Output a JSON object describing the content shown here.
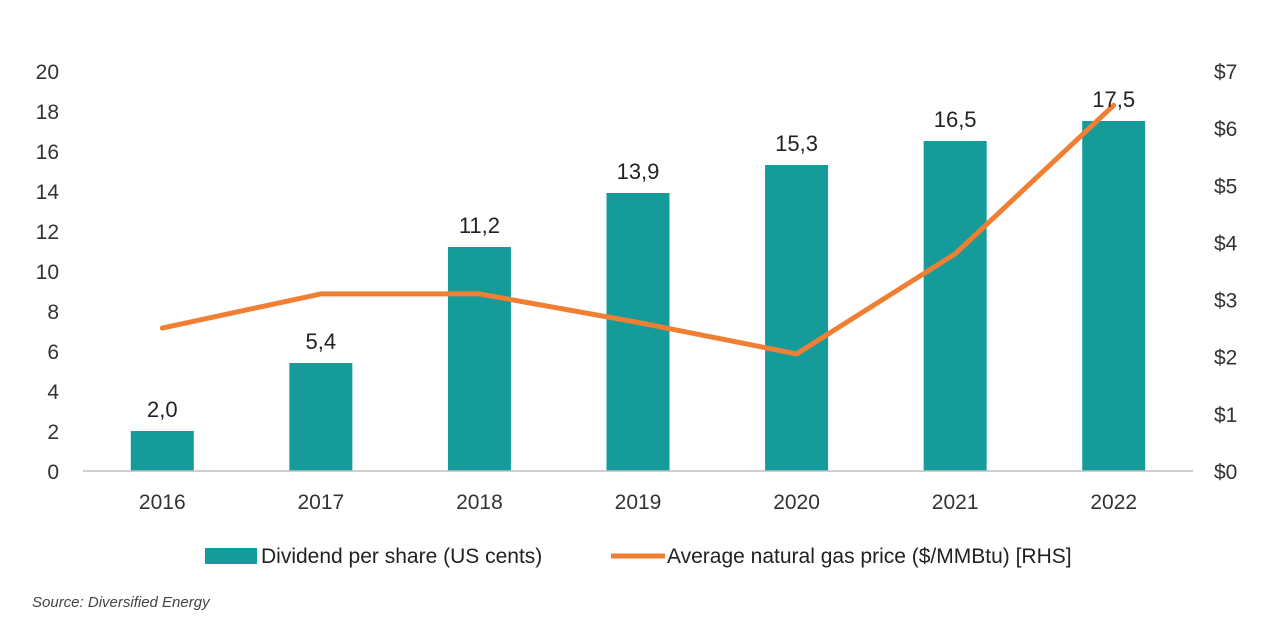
{
  "chart_data": {
    "type": "bar",
    "categories": [
      "2016",
      "2017",
      "2018",
      "2019",
      "2020",
      "2021",
      "2022"
    ],
    "series": [
      {
        "name": "Dividend per share (US cents)",
        "type": "bar",
        "axis": "left",
        "values": [
          2.0,
          5.4,
          11.2,
          13.9,
          15.3,
          16.5,
          17.5
        ],
        "data_labels": [
          "2,0",
          "5,4",
          "11,2",
          "13,9",
          "15,3",
          "16,5",
          "17,5"
        ],
        "color": "#169b9b"
      },
      {
        "name": "Average natural gas price ($/MMBtu) [RHS]",
        "type": "line",
        "axis": "right",
        "values": [
          2.5,
          3.1,
          3.1,
          2.6,
          2.05,
          3.8,
          6.4
        ],
        "color": "#f07f33"
      }
    ],
    "y_left": {
      "lim": [
        0,
        20
      ],
      "ticks": [
        0,
        2,
        4,
        6,
        8,
        10,
        12,
        14,
        16,
        18,
        20
      ],
      "tick_labels": [
        "0",
        "2",
        "4",
        "6",
        "8",
        "10",
        "12",
        "14",
        "16",
        "18",
        "20"
      ]
    },
    "y_right": {
      "lim": [
        0,
        7
      ],
      "ticks": [
        0,
        1,
        2,
        3,
        4,
        5,
        6,
        7
      ],
      "tick_labels": [
        "$0",
        "$1",
        "$2",
        "$3",
        "$4",
        "$5",
        "$6",
        "$7"
      ]
    },
    "grid": false,
    "legend_position": "bottom"
  },
  "source_note": "Source: Diversified Energy"
}
